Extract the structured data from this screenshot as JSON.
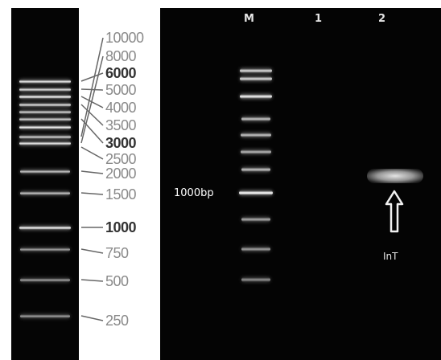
{
  "ladder": {
    "sizes": [
      {
        "label": "10000",
        "bold": false
      },
      {
        "label": "8000",
        "bold": false
      },
      {
        "label": "6000",
        "bold": true
      },
      {
        "label": "5000",
        "bold": false
      },
      {
        "label": "4000",
        "bold": false
      },
      {
        "label": "3500",
        "bold": false
      },
      {
        "label": "3000",
        "bold": true
      },
      {
        "label": "2500",
        "bold": false
      },
      {
        "label": "2000",
        "bold": false
      },
      {
        "label": "1500",
        "bold": false
      },
      {
        "label": "1000",
        "bold": true
      },
      {
        "label": "750",
        "bold": false
      },
      {
        "label": "500",
        "bold": false
      },
      {
        "label": "250",
        "bold": false
      }
    ]
  },
  "gel": {
    "lanes": [
      {
        "label": "M"
      },
      {
        "label": "1"
      },
      {
        "label": "2"
      }
    ],
    "marker_label": "1000bp",
    "arrow_label": "InT"
  },
  "colors": {
    "gel_background": "#050505",
    "band": "#ffffff",
    "label_gray": "#8a8a8a",
    "label_bold": "#333333"
  }
}
